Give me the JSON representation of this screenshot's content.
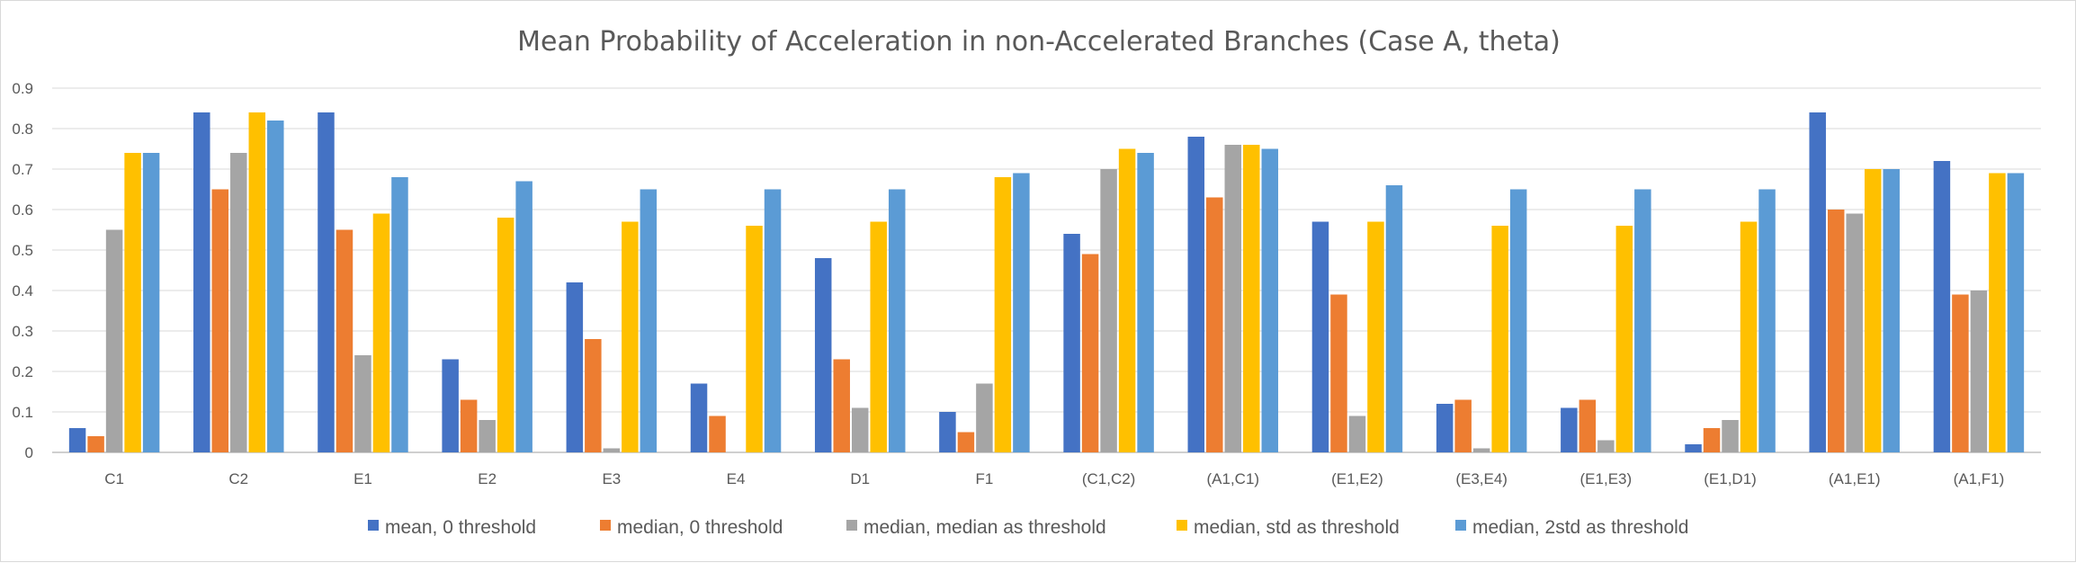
{
  "chart_data": {
    "type": "bar",
    "title": "Mean Probability of Acceleration in non-Accelerated Branches (Case A, theta)",
    "xlabel": "",
    "ylabel": "",
    "ylim": [
      0,
      0.9
    ],
    "yticks": [
      "0",
      "0.1",
      "0.2",
      "0.3",
      "0.4",
      "0.5",
      "0.6",
      "0.7",
      "0.8",
      "0.9"
    ],
    "grid": true,
    "legend_position": "bottom",
    "categories": [
      "C1",
      "C2",
      "E1",
      "E2",
      "E3",
      "E4",
      "D1",
      "F1",
      "(C1,C2)",
      "(A1,C1)",
      "(E1,E2)",
      "(E3,E4)",
      "(E1,E3)",
      "(E1,D1)",
      "(A1,E1)",
      "(A1,F1)"
    ],
    "series": [
      {
        "name": "mean, 0 threshold",
        "color": "#4472c4",
        "values": [
          0.06,
          0.84,
          0.84,
          0.23,
          0.42,
          0.17,
          0.48,
          0.1,
          0.54,
          0.78,
          0.57,
          0.12,
          0.11,
          0.02,
          0.84,
          0.72
        ]
      },
      {
        "name": "median, 0 threshold",
        "color": "#ed7d31",
        "values": [
          0.04,
          0.65,
          0.55,
          0.13,
          0.28,
          0.09,
          0.23,
          0.05,
          0.49,
          0.63,
          0.39,
          0.13,
          0.13,
          0.06,
          0.6,
          0.39
        ]
      },
      {
        "name": "median, median as threshold",
        "color": "#a5a5a5",
        "values": [
          0.55,
          0.74,
          0.24,
          0.08,
          0.01,
          0.0,
          0.11,
          0.17,
          0.7,
          0.76,
          0.09,
          0.01,
          0.03,
          0.08,
          0.59,
          0.4
        ]
      },
      {
        "name": "median, std as threshold",
        "color": "#ffc000",
        "values": [
          0.74,
          0.84,
          0.59,
          0.58,
          0.57,
          0.56,
          0.57,
          0.68,
          0.75,
          0.76,
          0.57,
          0.56,
          0.56,
          0.57,
          0.7,
          0.69
        ]
      },
      {
        "name": "median, 2std as threshold",
        "color": "#5b9bd5",
        "values": [
          0.74,
          0.82,
          0.68,
          0.67,
          0.65,
          0.65,
          0.65,
          0.69,
          0.74,
          0.75,
          0.66,
          0.65,
          0.65,
          0.65,
          0.7,
          0.69
        ]
      }
    ]
  }
}
